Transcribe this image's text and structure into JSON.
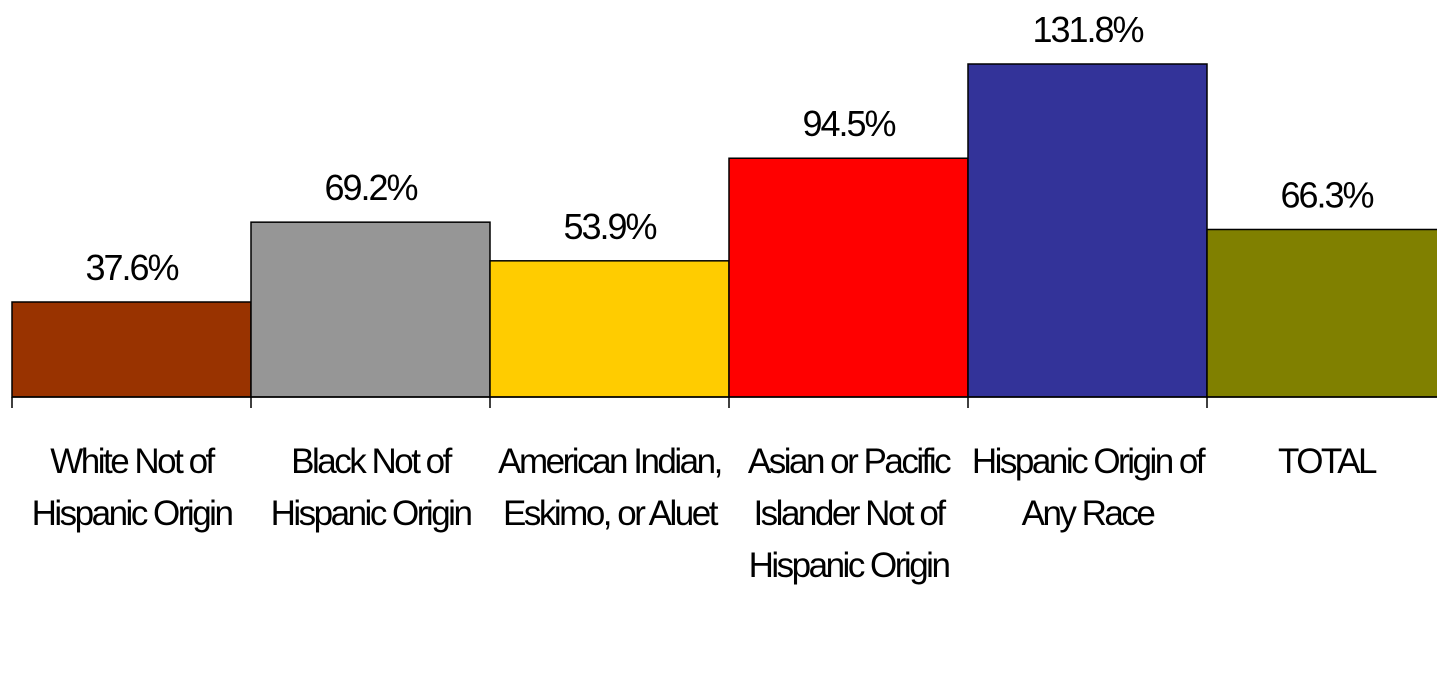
{
  "chart_data": {
    "type": "bar",
    "categories": [
      "White Not of Hispanic Origin",
      "Black Not of Hispanic Origin",
      "American Indian, Eskimo, or Aluet",
      "Asian or Pacific Islander Not of Hispanic Origin",
      "Hispanic Origin of Any Race",
      "TOTAL"
    ],
    "values": [
      37.6,
      69.2,
      53.9,
      94.5,
      131.8,
      66.3
    ],
    "value_labels": [
      "37.6%",
      "69.2%",
      "53.9%",
      "94.5%",
      "131.8%",
      "66.3%"
    ],
    "colors": [
      "#993300",
      "#969696",
      "#ffcc00",
      "#ff0000",
      "#333399",
      "#808000"
    ]
  }
}
